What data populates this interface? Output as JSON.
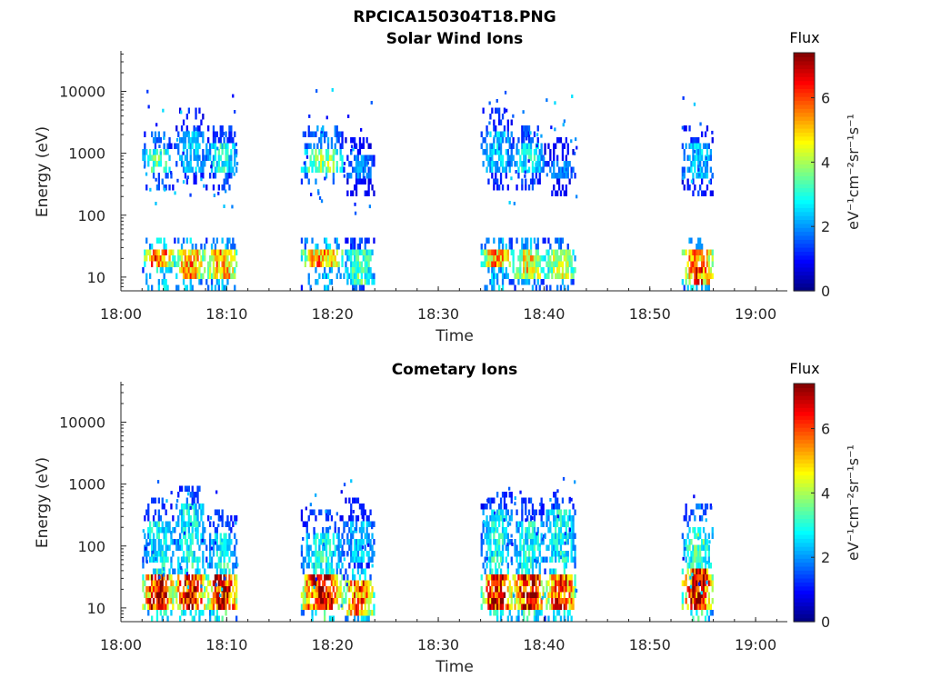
{
  "figure": {
    "file_title": "RPCICA150304T18.PNG"
  },
  "chart_data": [
    {
      "type": "heatmap",
      "title": "Solar Wind Ions",
      "xlabel": "Time",
      "ylabel": "Energy (eV)",
      "x_ticks": [
        "18:00",
        "18:10",
        "18:20",
        "18:30",
        "18:40",
        "18:50",
        "19:00"
      ],
      "xlim": [
        "18:00",
        "19:03"
      ],
      "y_scale": "log",
      "y_ticks": [
        10,
        100,
        1000,
        10000
      ],
      "ylim": [
        6,
        45000
      ],
      "colorbar": {
        "label": "Flux",
        "units": "eV⁻¹cm⁻²sr⁻¹s⁻¹",
        "ticks": [
          0,
          2,
          4,
          6
        ],
        "range": [
          0,
          7.4
        ],
        "colormap": "jet"
      },
      "bursts": [
        {
          "start": "18:02",
          "end": "18:05",
          "low_core": [
            15,
            30
          ],
          "low_peak": 6.0,
          "high_core": [
            500,
            1200
          ],
          "high_peak": 3.5
        },
        {
          "start": "18:05",
          "end": "18:08",
          "low_core": [
            10,
            30
          ],
          "low_peak": 5.5,
          "high_core": [
            600,
            2500
          ],
          "high_peak": 2.5
        },
        {
          "start": "18:08",
          "end": "18:11",
          "low_core": [
            10,
            30
          ],
          "low_peak": 5.5,
          "high_core": [
            500,
            1500
          ],
          "high_peak": 3.0
        },
        {
          "start": "18:17",
          "end": "18:21",
          "low_core": [
            15,
            30
          ],
          "low_peak": 5.5,
          "high_core": [
            600,
            1300
          ],
          "high_peak": 4.0
        },
        {
          "start": "18:21",
          "end": "18:24",
          "low_core": [
            8,
            30
          ],
          "low_peak": 3.5,
          "high_core": [
            400,
            1000
          ],
          "high_peak": 2.0
        },
        {
          "start": "18:34",
          "end": "18:37",
          "low_core": [
            15,
            30
          ],
          "low_peak": 5.5,
          "high_core": [
            500,
            2500
          ],
          "high_peak": 2.5
        },
        {
          "start": "18:37",
          "end": "18:40",
          "low_core": [
            10,
            30
          ],
          "low_peak": 5.0,
          "high_core": [
            500,
            1500
          ],
          "high_peak": 3.0
        },
        {
          "start": "18:40",
          "end": "18:43",
          "low_core": [
            10,
            30
          ],
          "low_peak": 4.5,
          "high_core": [
            400,
            900
          ],
          "high_peak": 2.0
        },
        {
          "start": "18:53",
          "end": "18:56",
          "low_core": [
            8,
            30
          ],
          "low_peak": 6.0,
          "high_core": [
            400,
            1500
          ],
          "high_peak": 2.5
        }
      ]
    },
    {
      "type": "heatmap",
      "title": "Cometary Ions",
      "xlabel": "Time",
      "ylabel": "Energy (eV)",
      "x_ticks": [
        "18:00",
        "18:10",
        "18:20",
        "18:30",
        "18:40",
        "18:50",
        "19:00"
      ],
      "xlim": [
        "18:00",
        "19:03"
      ],
      "y_scale": "log",
      "y_ticks": [
        10,
        100,
        1000,
        10000
      ],
      "ylim": [
        6,
        45000
      ],
      "colorbar": {
        "label": "Flux",
        "units": "eV⁻¹cm⁻²sr⁻¹s⁻¹",
        "ticks": [
          0,
          2,
          4,
          6
        ],
        "range": [
          0,
          7.4
        ],
        "colormap": "jet"
      },
      "bursts": [
        {
          "start": "18:02",
          "end": "18:05",
          "low_core": [
            10,
            40
          ],
          "low_peak": 7.0,
          "high_core": [
            60,
            300
          ],
          "high_peak": 3.0
        },
        {
          "start": "18:05",
          "end": "18:08",
          "low_core": [
            10,
            40
          ],
          "low_peak": 7.0,
          "high_core": [
            60,
            500
          ],
          "high_peak": 3.0
        },
        {
          "start": "18:08",
          "end": "18:11",
          "low_core": [
            10,
            40
          ],
          "low_peak": 7.0,
          "high_core": [
            50,
            200
          ],
          "high_peak": 2.8
        },
        {
          "start": "18:17",
          "end": "18:21",
          "low_core": [
            10,
            40
          ],
          "low_peak": 7.0,
          "high_core": [
            40,
            200
          ],
          "high_peak": 3.0
        },
        {
          "start": "18:21",
          "end": "18:24",
          "low_core": [
            8,
            30
          ],
          "low_peak": 6.0,
          "high_core": [
            60,
            300
          ],
          "high_peak": 2.5
        },
        {
          "start": "18:34",
          "end": "18:37",
          "low_core": [
            10,
            40
          ],
          "low_peak": 7.0,
          "high_core": [
            60,
            400
          ],
          "high_peak": 3.0
        },
        {
          "start": "18:37",
          "end": "18:40",
          "low_core": [
            10,
            40
          ],
          "low_peak": 7.0,
          "high_core": [
            50,
            300
          ],
          "high_peak": 3.0
        },
        {
          "start": "18:40",
          "end": "18:43",
          "low_core": [
            10,
            40
          ],
          "low_peak": 6.5,
          "high_core": [
            60,
            400
          ],
          "high_peak": 3.0
        },
        {
          "start": "18:53",
          "end": "18:56",
          "low_core": [
            10,
            50
          ],
          "low_peak": 7.0,
          "high_core": [
            50,
            250
          ],
          "high_peak": 3.5
        }
      ]
    }
  ]
}
